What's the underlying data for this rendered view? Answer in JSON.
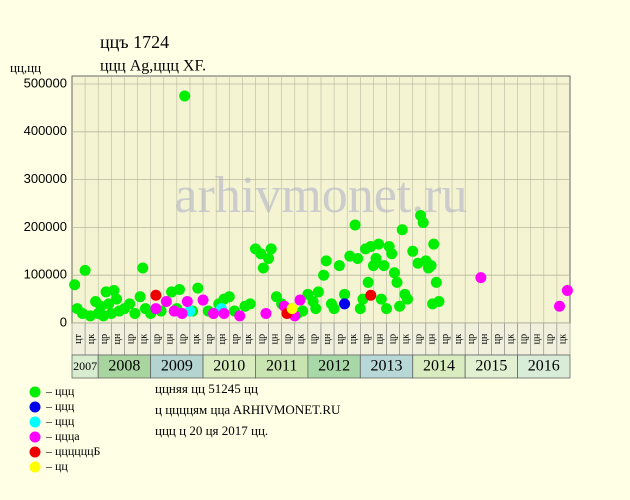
{
  "chart_data": {
    "type": "scatter",
    "title": "ццъ 1724",
    "subtitle": "ццц Ag,ццц XF.",
    "y_label": "цц,цц",
    "watermark": "arhivmonet.ru",
    "notes": [
      "ццняя цц 51245 цц",
      "ц ццццям ццa ARHIVMONET.RU",
      "ццц ц 20 ця 2017 цц."
    ],
    "xlim": [
      2007.5,
      2017.0
    ],
    "ylim": [
      0,
      500000
    ],
    "yticks": [
      0,
      100000,
      200000,
      300000,
      400000,
      500000
    ],
    "grid": true,
    "column_labels": [
      "цт",
      "цк",
      "цр",
      "цн",
      "цр",
      "цк",
      "цр",
      "цн",
      "цр",
      "цк",
      "цр",
      "цн",
      "цр",
      "цк",
      "цр",
      "цн",
      "цр",
      "цк",
      "цр",
      "цн",
      "цр",
      "цк",
      "цр",
      "цн",
      "цр",
      "цк",
      "цр",
      "цн",
      "цр",
      "цк",
      "цр",
      "цн",
      "цр",
      "цк",
      "цр",
      "цн",
      "цр",
      "цк"
    ],
    "years": [
      "2007",
      "2008",
      "2009",
      "2010",
      "2011",
      "2012",
      "2013",
      "2014",
      "2015",
      "2016"
    ],
    "year_colors": [
      "#d8ecd0",
      "#a8d4a0",
      "#b4d4d0",
      "#d8ecc0",
      "#c8e4b0",
      "#a8d8a8",
      "#b8d8d8",
      "#d8ecc0",
      "#e0f0d0",
      "#d8ecd8"
    ],
    "series": [
      {
        "name": "– ццц",
        "color": "#00ee00",
        "x": [
          2007.55,
          2007.6,
          2007.7,
          2007.75,
          2007.85,
          2007.95,
          2008.0,
          2008.05,
          2008.1,
          2008.15,
          2008.2,
          2008.25,
          2008.3,
          2008.35,
          2008.4,
          2008.5,
          2008.6,
          2008.7,
          2008.8,
          2008.85,
          2008.9,
          2009.0,
          2009.2,
          2009.4,
          2009.5,
          2009.55,
          2009.65,
          2009.9,
          2010.1,
          2010.3,
          2010.4,
          2010.5,
          2010.6,
          2010.8,
          2010.9,
          2011.0,
          2011.1,
          2011.15,
          2011.25,
          2011.3,
          2011.4,
          2011.5,
          2011.7,
          2011.8,
          2012.0,
          2012.1,
          2012.15,
          2012.2,
          2012.3,
          2012.35,
          2012.45,
          2012.6,
          2012.7,
          2012.8,
          2012.9,
          2012.95,
          2013.0,
          2013.1,
          2013.15,
          2013.2,
          2013.25,
          2013.3,
          2013.35,
          2013.4,
          2013.45,
          2013.55,
          2013.6,
          2013.65,
          2013.7,
          2013.8,
          2013.85,
          2013.9,
          2014.0,
          2014.1,
          2014.15,
          2014.2,
          2014.25,
          2014.3,
          2014.35,
          2014.4,
          2014.45,
          2014.5,
          2013.05,
          2012.5,
          2011.9,
          2010.2,
          2009.8,
          2014.38,
          2013.75,
          2013.5
        ],
        "values": [
          80000,
          30000,
          20000,
          110000,
          15000,
          45000,
          20000,
          35000,
          15000,
          65000,
          40000,
          20000,
          68000,
          50000,
          25000,
          30000,
          40000,
          20000,
          55000,
          115000,
          30000,
          20000,
          25000,
          65000,
          30000,
          70000,
          475000,
          73000,
          25000,
          40000,
          50000,
          55000,
          25000,
          35000,
          40000,
          155000,
          145000,
          115000,
          135000,
          155000,
          55000,
          40000,
          30000,
          20000,
          60000,
          45000,
          30000,
          65000,
          100000,
          130000,
          40000,
          120000,
          60000,
          140000,
          205000,
          135000,
          30000,
          155000,
          85000,
          160000,
          120000,
          135000,
          165000,
          50000,
          120000,
          160000,
          145000,
          105000,
          85000,
          195000,
          60000,
          50000,
          150000,
          125000,
          225000,
          210000,
          130000,
          115000,
          120000,
          165000,
          85000,
          45000,
          50000,
          30000,
          25000,
          20000,
          25000,
          40000,
          35000,
          30000
        ]
      },
      {
        "name": "– ццц",
        "color": "#0000ee",
        "x": [
          2012.7
        ],
        "values": [
          40000
        ]
      },
      {
        "name": "– ццц",
        "color": "#00ffff",
        "x": [
          2009.75,
          2010.35
        ],
        "values": [
          25000,
          30000
        ]
      },
      {
        "name": "– ццца",
        "color": "#ff00ff",
        "x": [
          2009.1,
          2009.3,
          2009.45,
          2009.6,
          2009.7,
          2010.0,
          2010.2,
          2010.4,
          2010.7,
          2011.2,
          2011.55,
          2011.75,
          2011.85,
          2015.3,
          2016.8,
          2016.95
        ],
        "values": [
          30000,
          45000,
          25000,
          20000,
          45000,
          48000,
          20000,
          20000,
          15000,
          20000,
          35000,
          15000,
          48000,
          95000,
          35000,
          68000
        ]
      },
      {
        "name": "– ццццццБ",
        "color": "#ee0000",
        "x": [
          2009.1,
          2011.6,
          2013.2
        ],
        "values": [
          58000,
          20000,
          58000
        ]
      },
      {
        "name": "– цц",
        "color": "#ffff00",
        "x": [
          2011.7
        ],
        "values": [
          30000
        ]
      }
    ]
  }
}
